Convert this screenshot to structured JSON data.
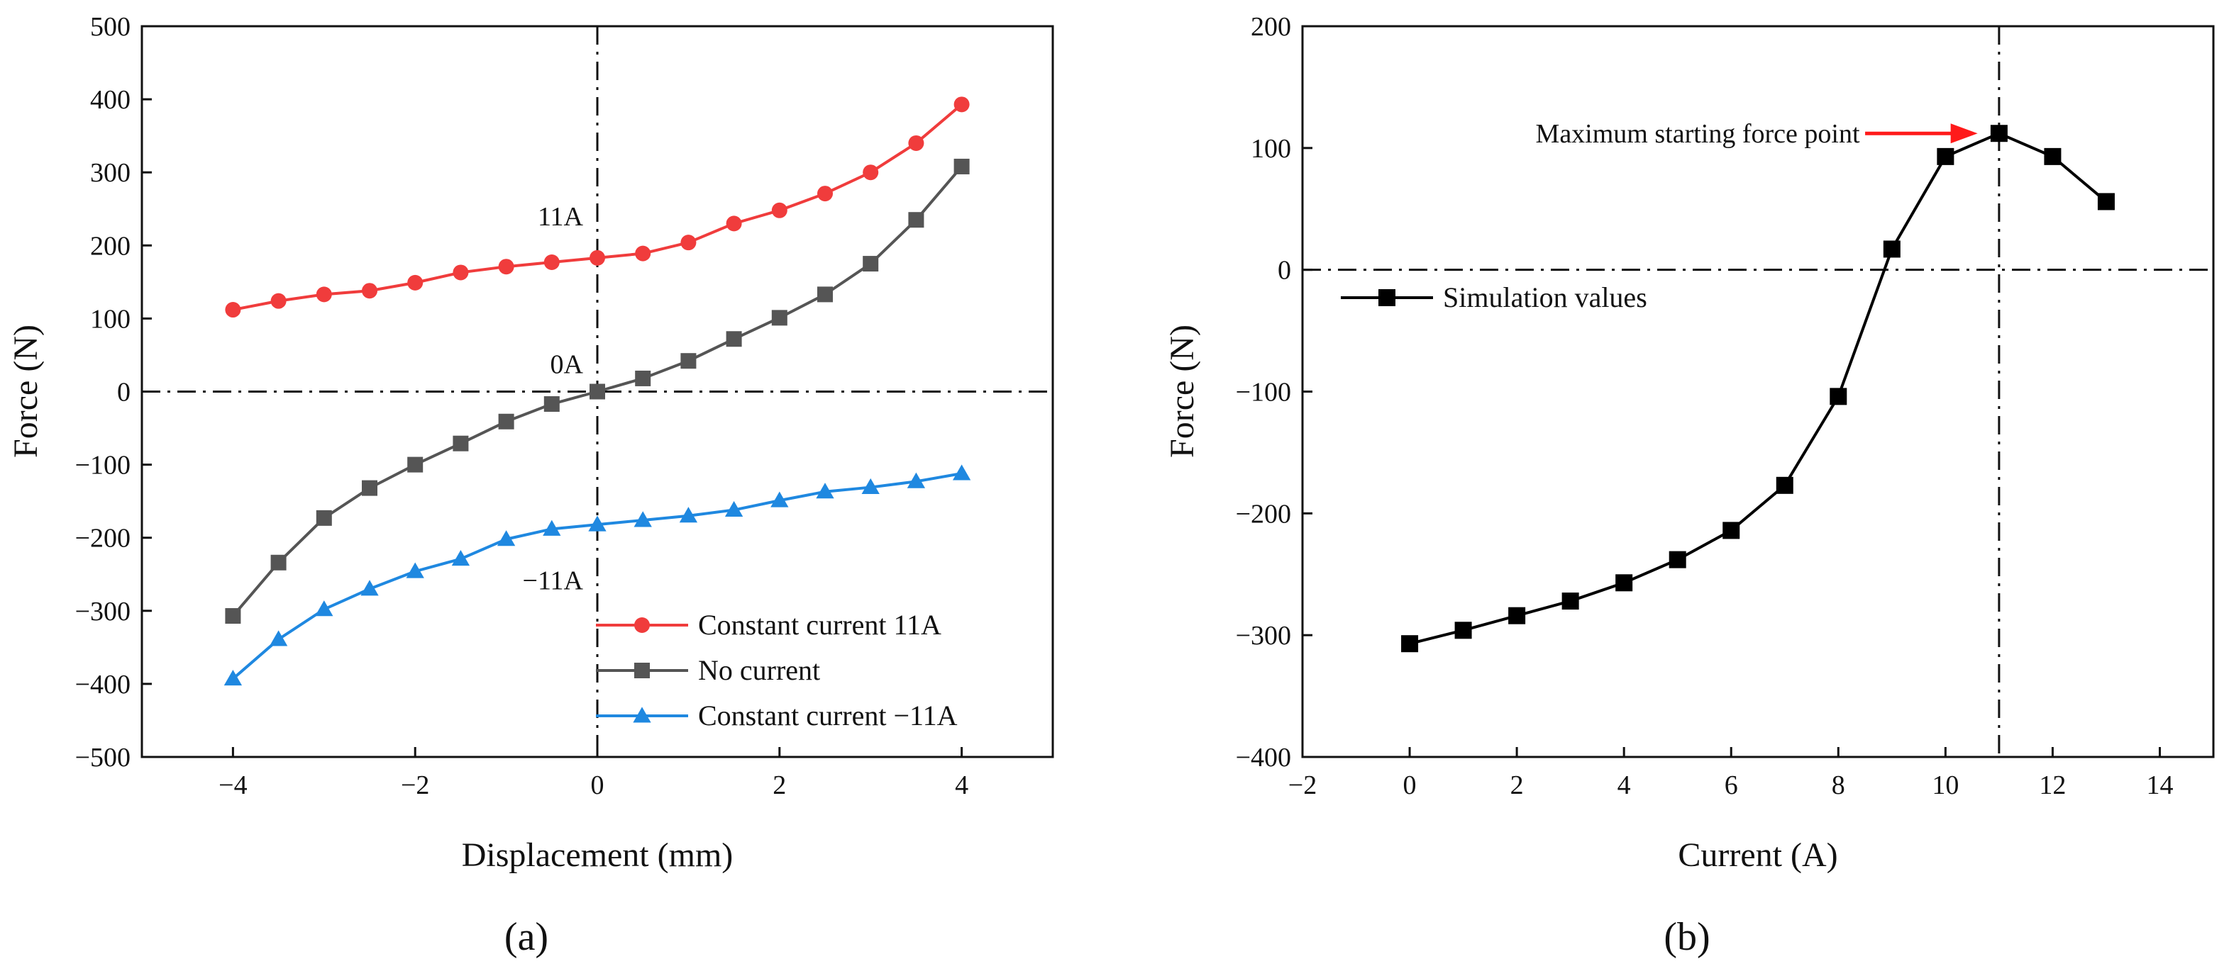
{
  "chart_data": [
    {
      "type": "line",
      "panel_label": "(a)",
      "xlabel": "Displacement (mm)",
      "ylabel": "Force (N)",
      "xlim": [
        -5,
        5
      ],
      "ylim": [
        -500,
        500
      ],
      "x_ticks": [
        -4,
        -2,
        0,
        2,
        4
      ],
      "x_tick_labels": [
        "−4",
        "−2",
        "0",
        "2",
        "4"
      ],
      "y_ticks": [
        -500,
        -400,
        -300,
        -200,
        -100,
        0,
        100,
        200,
        300,
        400,
        500
      ],
      "y_tick_labels": [
        "−500",
        "−400",
        "−300",
        "−200",
        "−100",
        "0",
        "100",
        "200",
        "300",
        "400",
        "500"
      ],
      "grid": false,
      "legend_position": "bottom-right",
      "reference_lines": {
        "x": 0,
        "y": 0,
        "style": "dash-dot"
      },
      "annotations": [
        {
          "text": "11A",
          "x": 0,
          "y": 240
        },
        {
          "text": "0A",
          "x": 0,
          "y": 38
        },
        {
          "text": "−11A",
          "x": 0,
          "y": -258
        }
      ],
      "x": [
        -4,
        -3.5,
        -3,
        -2.5,
        -2,
        -1.5,
        -1,
        -0.5,
        0,
        0.5,
        1,
        1.5,
        2,
        2.5,
        3,
        3.5,
        4
      ],
      "series": [
        {
          "name": "Constant current 11A",
          "color": "#f03c3c",
          "marker": "circle",
          "values": [
            112,
            124,
            133,
            138,
            149,
            163,
            171,
            177,
            183,
            189,
            204,
            230,
            248,
            271,
            300,
            340,
            393
          ]
        },
        {
          "name": "No current",
          "color": "#555555",
          "marker": "square",
          "values": [
            -307,
            -234,
            -173,
            -132,
            -100,
            -71,
            -41,
            -17,
            0,
            18,
            42,
            72,
            101,
            133,
            175,
            235,
            308
          ]
        },
        {
          "name": "Constant current −11A",
          "color": "#1f88e0",
          "marker": "triangle",
          "values": [
            -393,
            -339,
            -298,
            -270,
            -246,
            -229,
            -202,
            -188,
            -182,
            -176,
            -170,
            -162,
            -149,
            -137,
            -131,
            -123,
            -112
          ]
        }
      ]
    },
    {
      "type": "line",
      "panel_label": "(b)",
      "xlabel": "Current (A)",
      "ylabel": "Force (N)",
      "xlim": [
        -2,
        15
      ],
      "ylim": [
        -400,
        200
      ],
      "x_ticks": [
        -2,
        0,
        2,
        4,
        6,
        8,
        10,
        12,
        14
      ],
      "x_tick_labels": [
        "−2",
        "0",
        "2",
        "4",
        "6",
        "8",
        "10",
        "12",
        "14"
      ],
      "y_ticks": [
        -400,
        -300,
        -200,
        -100,
        0,
        100,
        200
      ],
      "y_tick_labels": [
        "−400",
        "−300",
        "−200",
        "−100",
        "0",
        "100",
        "200"
      ],
      "grid": false,
      "legend_position": "upper-left",
      "reference_lines": {
        "x": 11,
        "y": 0,
        "style": "dash-dot"
      },
      "annotations": [
        {
          "text": "Maximum starting force point",
          "x": 8.4,
          "y": 112
        }
      ],
      "x": [
        0,
        1,
        2,
        3,
        4,
        5,
        6,
        7,
        8,
        9,
        10,
        11,
        12,
        13
      ],
      "series": [
        {
          "name": "Simulation values",
          "color": "#000000",
          "marker": "square",
          "values": [
            -307,
            -296,
            -284,
            -272,
            -257,
            -238,
            -214,
            -177,
            -104,
            17,
            93,
            112,
            93,
            56
          ]
        }
      ]
    }
  ]
}
